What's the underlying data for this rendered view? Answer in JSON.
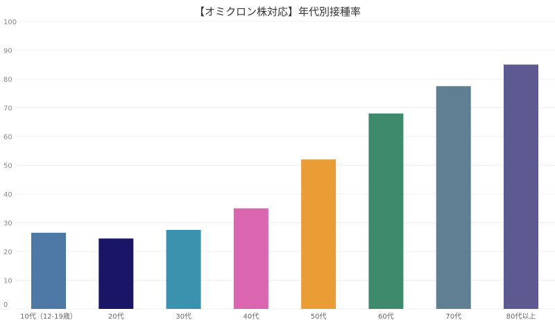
{
  "chart_data": {
    "type": "bar",
    "title": "【オミクロン株対応】年代別接種率",
    "categories": [
      "10代（12-19歳）",
      "20代",
      "30代",
      "40代",
      "50代",
      "60代",
      "70代",
      "80代以上"
    ],
    "values": [
      26.5,
      24.5,
      27.5,
      35,
      52,
      68,
      77.5,
      85
    ],
    "colors": [
      "#4e79a7",
      "#1a1566",
      "#3b92ae",
      "#d966ae",
      "#ea9c35",
      "#3e8a6c",
      "#5f7f93",
      "#5c5a90"
    ],
    "ylim": [
      0,
      100
    ],
    "yticks": [
      "0",
      "10",
      "20",
      "30",
      "40",
      "50",
      "60",
      "70",
      "80",
      "90",
      "100"
    ],
    "xlabel": "",
    "ylabel": "",
    "grid": true,
    "legend": "none"
  }
}
